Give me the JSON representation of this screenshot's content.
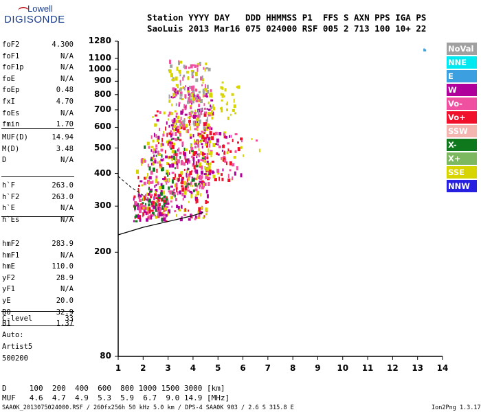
{
  "logo": {
    "line1": "Lowell",
    "line2": "DIGISONDE"
  },
  "header": {
    "line1": "Station YYYY DAY   DDD HHMMSS P1  FFS S AXN PPS IGA PS",
    "line2": "SaoLuis 2013 Mar16 075 024000 RSF 005 2 713 100 10+ 22"
  },
  "params_a": [
    {
      "name": "foF2",
      "value": "4.300"
    },
    {
      "name": "foF1",
      "value": "N/A"
    },
    {
      "name": "foF1p",
      "value": "N/A"
    },
    {
      "name": "foE",
      "value": "N/A"
    },
    {
      "name": "foEp",
      "value": "0.48"
    },
    {
      "name": "fxI",
      "value": "4.70"
    },
    {
      "name": "foEs",
      "value": "N/A"
    },
    {
      "name": "fmin",
      "value": "1.70"
    }
  ],
  "params_b": [
    {
      "name": "MUF(D)",
      "value": "14.94"
    },
    {
      "name": "M(D)",
      "value": "3.48"
    },
    {
      "name": "D",
      "value": "N/A"
    }
  ],
  "params_c": [
    {
      "name": "h`F",
      "value": "263.0"
    },
    {
      "name": "h`F2",
      "value": "263.0"
    },
    {
      "name": "h`E",
      "value": "N/A"
    },
    {
      "name": "h`Es",
      "value": "N/A"
    }
  ],
  "params_d": [
    {
      "name": "hmF2",
      "value": "283.9"
    },
    {
      "name": "hmF1",
      "value": "N/A"
    },
    {
      "name": "hmE",
      "value": "110.0"
    },
    {
      "name": "yF2",
      "value": "28.9"
    },
    {
      "name": "yF1",
      "value": "N/A"
    },
    {
      "name": "yE",
      "value": "20.0"
    },
    {
      "name": "B0",
      "value": "32.9"
    },
    {
      "name": "B1",
      "value": "1.37"
    }
  ],
  "clevel": {
    "name": "C-level",
    "value": "33"
  },
  "auto": {
    "line1": "Auto:",
    "line2": "Artist5",
    "line3": "500200"
  },
  "table": {
    "row_d": "D     100  200  400  600  800 1000 1500 3000 [km]",
    "row_muf": "MUF   4.6  4.7  4.9  5.3  5.9  6.7  9.0 14.9 [MHz]"
  },
  "footer": {
    "left": "SAA0K_2013075024000.RSF / 260fx256h 50 kHz 5.0 km / DPS-4 SAA0K 903 / 2.6 S 315.8 E",
    "right": "Ion2Png 1.3.17"
  },
  "legend": [
    {
      "label": "NoVal",
      "color": "#a0a0a0"
    },
    {
      "label": "NNE",
      "color": "#00e8f0"
    },
    {
      "label": "E",
      "color": "#3ca0e0"
    },
    {
      "label": "W",
      "color": "#b0009c"
    },
    {
      "label": "Vo-",
      "color": "#f050a0"
    },
    {
      "label": "Vo+",
      "color": "#f0102c"
    },
    {
      "label": "SSW",
      "color": "#f4b4b0"
    },
    {
      "label": "X-",
      "color": "#10781c"
    },
    {
      "label": "X+",
      "color": "#7cb860"
    },
    {
      "label": "SSE",
      "color": "#d8d400"
    },
    {
      "label": "NNW",
      "color": "#2820e0"
    }
  ],
  "chart_data": {
    "type": "scatter",
    "xlim": [
      1,
      14
    ],
    "ylim": [
      80,
      1280
    ],
    "x_ticks": [
      1,
      2,
      3,
      4,
      5,
      6,
      7,
      8,
      9,
      10,
      11,
      12,
      13,
      14
    ],
    "y_ticks": [
      80,
      200,
      300,
      400,
      500,
      600,
      700,
      800,
      900,
      1000,
      1100,
      1280
    ],
    "y_scale": "log",
    "grid": false,
    "legend_placement": "right",
    "profile_line": [
      [
        1.0,
        233
      ],
      [
        2.0,
        249
      ],
      [
        3.0,
        262
      ],
      [
        4.0,
        276
      ],
      [
        4.4,
        284
      ]
    ],
    "dashed_line": [
      [
        1.0,
        390
      ],
      [
        1.5,
        355
      ],
      [
        2.0,
        330
      ]
    ],
    "clusters": [
      {
        "fmin": 1.6,
        "fmax": 3.0,
        "hmin": 265,
        "hmax": 330,
        "n": 120,
        "colors": [
          "#f0102c",
          "#b0009c",
          "#f050a0",
          "#10781c"
        ]
      },
      {
        "fmin": 1.7,
        "fmax": 4.6,
        "hmin": 270,
        "hmax": 420,
        "n": 200,
        "colors": [
          "#f0102c",
          "#b0009c",
          "#f050a0",
          "#d8d400"
        ]
      },
      {
        "fmin": 1.9,
        "fmax": 4.6,
        "hmin": 330,
        "hmax": 560,
        "n": 150,
        "colors": [
          "#b0009c",
          "#d8d400",
          "#f050a0",
          "#10781c"
        ]
      },
      {
        "fmin": 2.3,
        "fmax": 4.8,
        "hmin": 430,
        "hmax": 700,
        "n": 180,
        "colors": [
          "#f050a0",
          "#b0009c",
          "#d8d400",
          "#f0102c"
        ]
      },
      {
        "fmin": 3.0,
        "fmax": 4.7,
        "hmin": 600,
        "hmax": 860,
        "n": 120,
        "colors": [
          "#d8d400",
          "#b0009c",
          "#f050a0",
          "#a0a0a0"
        ]
      },
      {
        "fmin": 3.0,
        "fmax": 4.6,
        "hmin": 780,
        "hmax": 1090,
        "n": 90,
        "colors": [
          "#d8d400",
          "#a0a0a0",
          "#f050a0"
        ]
      },
      {
        "fmin": 4.2,
        "fmax": 5.9,
        "hmin": 380,
        "hmax": 580,
        "n": 100,
        "colors": [
          "#f050a0",
          "#d8d400",
          "#b0009c",
          "#f0102c"
        ]
      },
      {
        "fmin": 4.6,
        "fmax": 5.8,
        "hmin": 640,
        "hmax": 900,
        "n": 30,
        "colors": [
          "#d8d400"
        ]
      },
      {
        "fmin": 5.8,
        "fmax": 6.8,
        "hmin": 470,
        "hmax": 550,
        "n": 6,
        "colors": [
          "#d8d400",
          "#f050a0"
        ]
      },
      {
        "fmin": 13.2,
        "fmax": 13.25,
        "hmin": 1190,
        "hmax": 1215,
        "n": 2,
        "colors": [
          "#3ca0e0"
        ]
      }
    ]
  }
}
